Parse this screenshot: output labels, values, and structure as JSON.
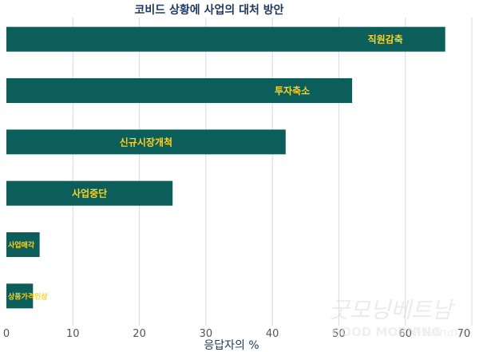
{
  "chart_data": {
    "type": "bar",
    "orientation": "horizontal",
    "title": "코비드 상황에 사업의 대처 방안",
    "xlabel": "응답자의 %",
    "ylabel": "",
    "xlim": [
      0,
      70
    ],
    "xticks": [
      0,
      10,
      20,
      30,
      40,
      50,
      60,
      70
    ],
    "grid": true,
    "categories": [
      "직원감축",
      "투자축소",
      "신규시장개척",
      "사업중단",
      "사업매각",
      "상품가격인상"
    ],
    "values": [
      66,
      52,
      42,
      25,
      5,
      4
    ],
    "bar_color": "#0b5e5a",
    "label_color": "#ffd21f"
  },
  "watermark": {
    "korean": "굿모닝베트남",
    "latin": "GOOD MORNING",
    "script": "Vietnam"
  }
}
